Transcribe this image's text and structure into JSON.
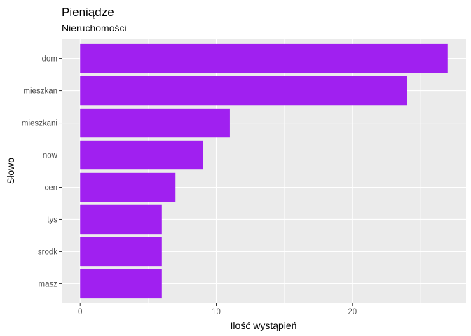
{
  "chart_data": {
    "type": "bar",
    "orientation": "horizontal",
    "title": "Pieniądze",
    "subtitle": "Nieruchomości",
    "xlabel": "Ilość wystąpień",
    "ylabel": "Słowo",
    "categories": [
      "dom",
      "mieszkan",
      "mieszkani",
      "now",
      "cen",
      "tys",
      "srodk",
      "masz"
    ],
    "values": [
      27,
      24,
      11,
      9,
      7,
      6,
      6,
      6
    ],
    "xlim": [
      -1.35,
      28.35
    ],
    "xticks": [
      0,
      10,
      20
    ],
    "xtick_labels": [
      "0",
      "10",
      "20"
    ],
    "grid": true,
    "panel_background": "#EBEBEB",
    "bar_color": "#A020F0"
  }
}
